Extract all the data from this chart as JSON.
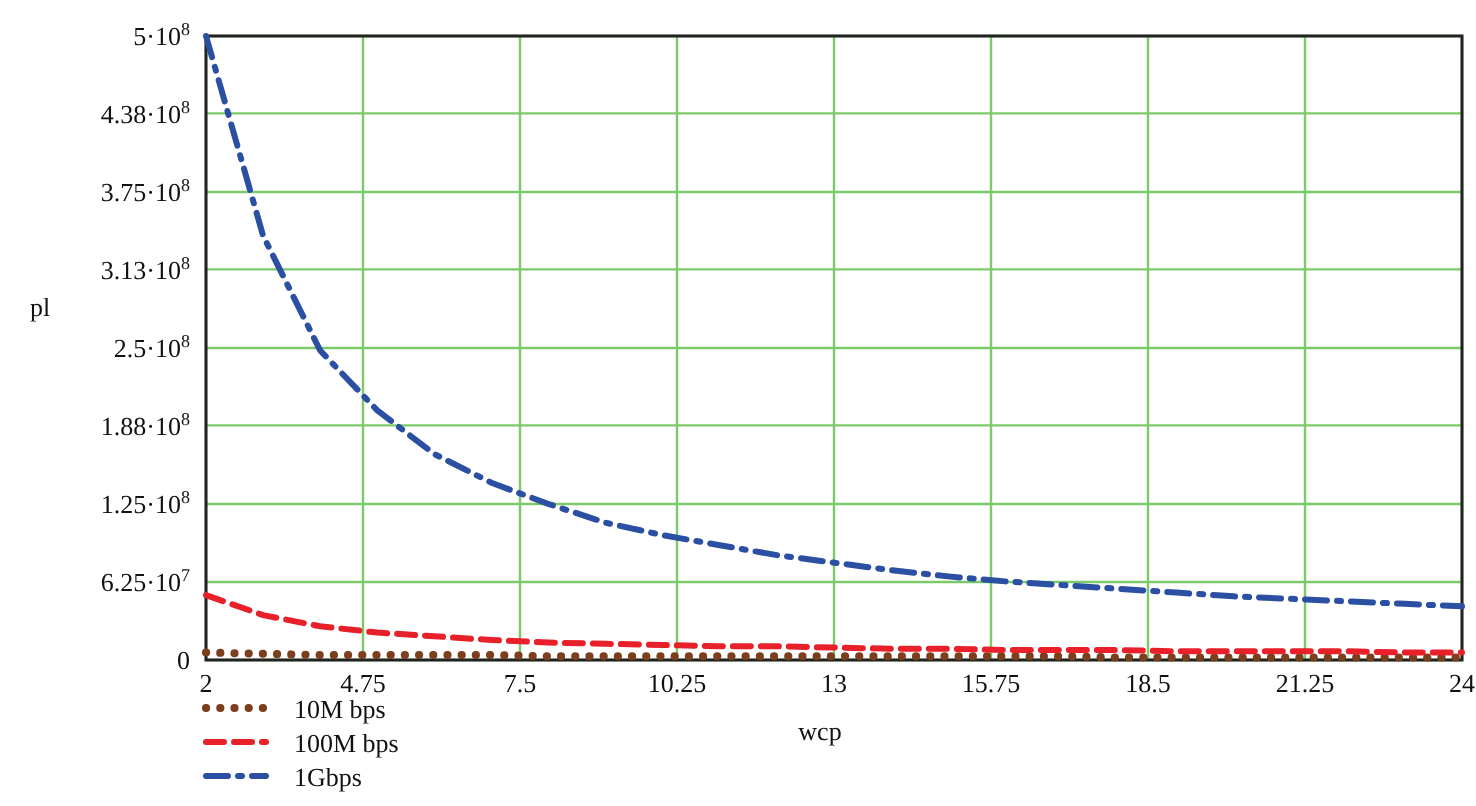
{
  "chart_data": {
    "type": "line",
    "xlabel": "wcp",
    "ylabel": "pl",
    "x": [
      2,
      3,
      4,
      5,
      6,
      7,
      8,
      9,
      10,
      11,
      12,
      13,
      14,
      15,
      16,
      17,
      18,
      19,
      20,
      21,
      22,
      23,
      24
    ],
    "series": [
      {
        "name": "10M bps",
        "color": "#7b3f1e",
        "line_style": "dotted",
        "values": [
          6000000,
          5000000,
          4000000,
          4000000,
          4000000,
          4000000,
          3000000,
          3000000,
          3000000,
          3000000,
          3000000,
          3000000,
          3000000,
          3000000,
          3000000,
          3000000,
          2000000,
          2000000,
          2000000,
          2000000,
          2000000,
          2000000,
          2000000
        ]
      },
      {
        "name": "100M bps",
        "color": "#e8202a",
        "line_style": "dashed",
        "values": [
          52000000,
          36000000,
          27000000,
          22000000,
          19000000,
          16000000,
          14000000,
          13000000,
          12000000,
          11000000,
          11000000,
          10000000,
          9000000,
          9000000,
          8000000,
          8000000,
          8000000,
          7000000,
          7000000,
          7000000,
          7000000,
          6000000,
          6000000
        ]
      },
      {
        "name": "1Gbps",
        "color": "#2a4fa3",
        "line_style": "dashdot",
        "values": [
          500000000,
          340000000,
          248000000,
          200000000,
          165000000,
          142000000,
          125000000,
          110000000,
          100000000,
          92000000,
          84000000,
          78000000,
          72000000,
          67000000,
          63000000,
          60000000,
          57000000,
          54000000,
          51000000,
          49000000,
          47000000,
          45000000,
          43000000
        ]
      }
    ],
    "xlim": [
      2,
      24
    ],
    "xticks": [
      2,
      4.75,
      7.5,
      10.25,
      13,
      15.75,
      18.5,
      21.25,
      24
    ],
    "ylim": [
      0,
      500000000
    ],
    "yticks": [
      0,
      {
        "value": 62500000,
        "label": "6.25·10$^{7}$"
      },
      {
        "value": 125000000,
        "label": "1.25·10$^{8}$"
      },
      {
        "value": 188000000,
        "label": "1.88·10$^{8}$"
      },
      {
        "value": 250000000,
        "label": "2.5·10$^{8}$"
      },
      {
        "value": 313000000,
        "label": "3.13·10$^{8}$"
      },
      {
        "value": 375000000,
        "label": "3.75·10$^{8}$"
      },
      {
        "value": 438000000,
        "label": "4.38·10$^{8}$"
      },
      {
        "value": 500000000,
        "label": "5·10$^{8}$"
      }
    ],
    "grid": true,
    "legend": "bottom left"
  }
}
